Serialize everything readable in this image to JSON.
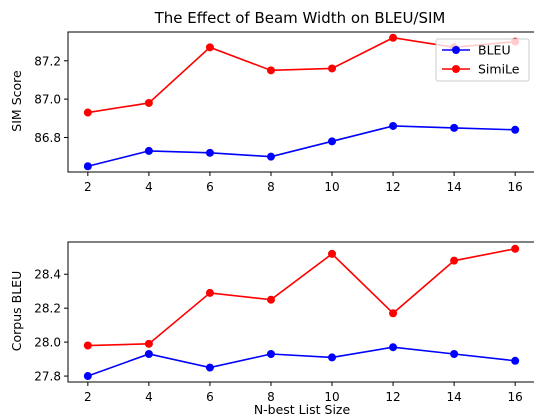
{
  "chart_data": [
    {
      "type": "line",
      "title": "The Effect of Beam Width on BLEU/SIM",
      "xlabel": "",
      "ylabel": "SIM Score",
      "x": [
        2,
        4,
        6,
        8,
        10,
        12,
        14,
        16
      ],
      "xlim": [
        1.35,
        16.65
      ],
      "ylim": [
        86.62,
        87.35
      ],
      "yticks": [
        86.8,
        87.0,
        87.2
      ],
      "yticks_labels": [
        "86.8",
        "87.0",
        "87.2"
      ],
      "legend": "top-right",
      "grid": false,
      "series": [
        {
          "name": "BLEU",
          "color": "#0000ff",
          "values": [
            86.65,
            86.73,
            86.72,
            86.7,
            86.78,
            86.86,
            86.85,
            86.84
          ]
        },
        {
          "name": "SimiLe",
          "color": "#ff0000",
          "values": [
            86.93,
            86.98,
            87.27,
            87.15,
            87.16,
            87.32,
            87.27,
            87.3
          ]
        }
      ]
    },
    {
      "type": "line",
      "title": "",
      "xlabel": "N-best List Size",
      "ylabel": "Corpus BLEU",
      "x": [
        2,
        4,
        6,
        8,
        10,
        12,
        14,
        16
      ],
      "xlim": [
        1.35,
        16.65
      ],
      "ylim": [
        27.765,
        28.59
      ],
      "yticks": [
        27.8,
        28.0,
        28.2,
        28.4
      ],
      "yticks_labels": [
        "27.8",
        "28.0",
        "28.2",
        "28.4"
      ],
      "grid": false,
      "series": [
        {
          "color": "#0000ff",
          "values": [
            27.8,
            27.93,
            27.85,
            27.93,
            27.91,
            27.97,
            27.93,
            27.89
          ]
        },
        {
          "color": "#ff0000",
          "values": [
            27.98,
            27.99,
            28.29,
            28.25,
            28.52,
            28.17,
            28.48,
            28.55
          ]
        }
      ]
    }
  ]
}
